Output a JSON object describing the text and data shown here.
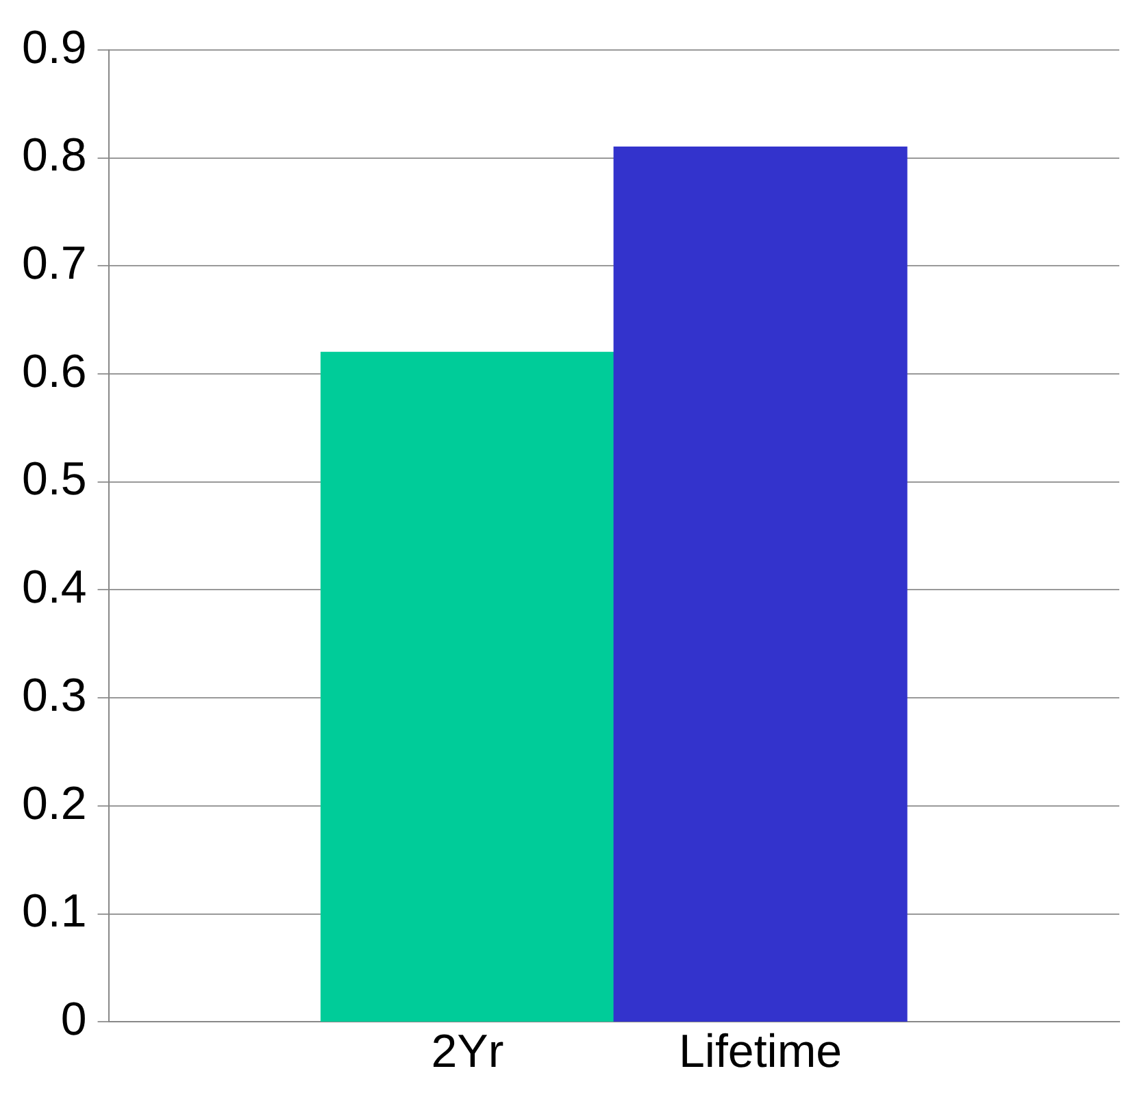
{
  "chart_data": {
    "type": "bar",
    "categories": [
      "2Yr",
      "Lifetime"
    ],
    "values": [
      0.62,
      0.81
    ],
    "colors": [
      "#00cc99",
      "#3333cc"
    ],
    "ylim": [
      0,
      0.9
    ],
    "yticks": [
      0,
      0.1,
      0.2,
      0.3,
      0.4,
      0.5,
      0.6,
      0.7,
      0.8,
      0.9
    ],
    "grid": "y",
    "legend": false
  }
}
